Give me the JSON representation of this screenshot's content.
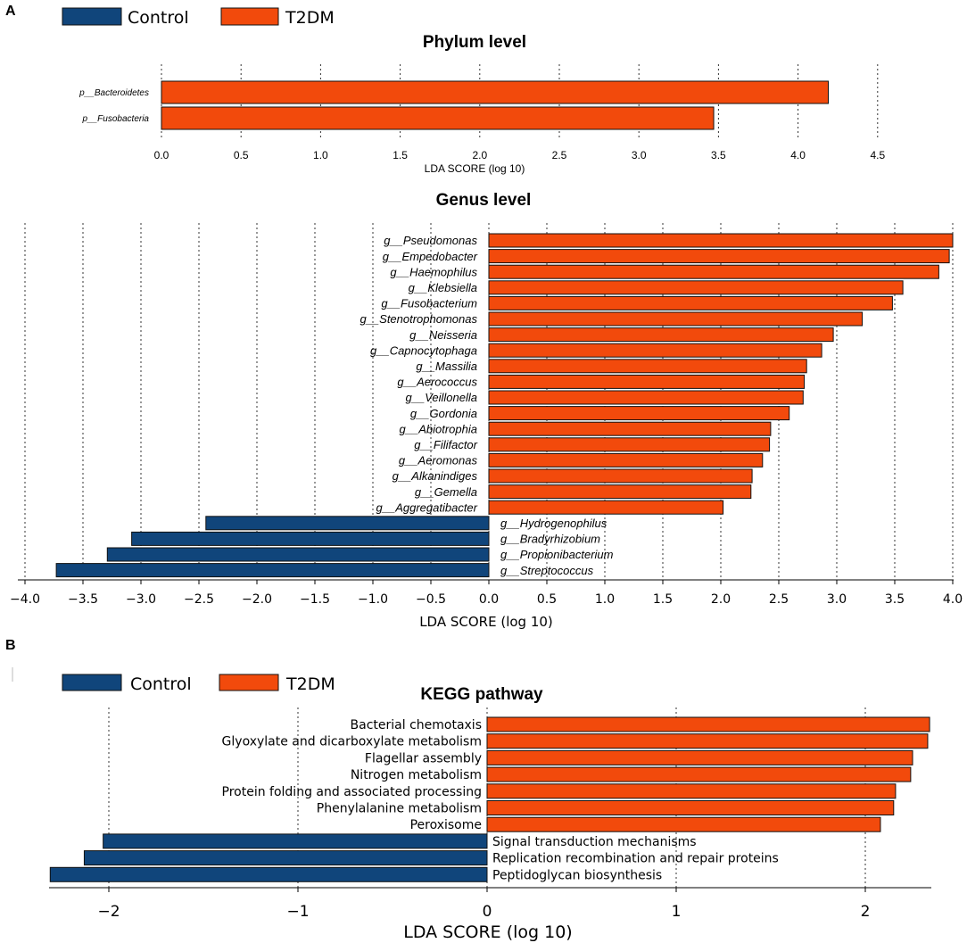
{
  "colors": {
    "control": "#10457b",
    "t2dm": "#f24a0c"
  },
  "chart_data": [
    {
      "panel": "A",
      "type": "bar",
      "orientation": "horizontal",
      "title": "Phylum level",
      "legend": [
        {
          "name": "Control",
          "color": "#10457b"
        },
        {
          "name": "T2DM",
          "color": "#f24a0c"
        }
      ],
      "legend_position": "top-left",
      "xlabel": "LDA SCORE (log 10)",
      "xlim": [
        0,
        4.9
      ],
      "ticks": [
        0,
        0.5,
        1,
        1.5,
        2,
        2.5,
        3,
        3.5,
        4,
        4.5
      ],
      "tick_labels": [
        "0.0",
        "0.5",
        "1.0",
        "1.5",
        "2.0",
        "2.5",
        "3.0",
        "3.5",
        "4.0",
        "4.5"
      ],
      "grid": true,
      "categories": [
        "p__Bacteroidetes",
        "p__Fusobacteria"
      ],
      "values": [
        4.19,
        3.47
      ],
      "groups": [
        "T2DM",
        "T2DM"
      ]
    },
    {
      "panel": "A",
      "type": "bar",
      "orientation": "horizontal",
      "title": "Genus level",
      "xlabel": "LDA SCORE (log 10)",
      "xlim": [
        -4.1,
        4.02
      ],
      "ticks": [
        -4,
        -3.5,
        -3,
        -2.5,
        -2,
        -1.5,
        -1,
        -0.5,
        0,
        0.5,
        1,
        1.5,
        2,
        2.5,
        3,
        3.5,
        4
      ],
      "tick_labels": [
        "−4.0",
        "−3.5",
        "−3.0",
        "−2.5",
        "−2.0",
        "−1.5",
        "−1.0",
        "−0.5",
        "0.0",
        "0.5",
        "1.0",
        "1.5",
        "2.0",
        "2.5",
        "3.0",
        "3.5",
        "4.0"
      ],
      "grid": true,
      "categories": [
        "g__Pseudomonas",
        "g__Empedobacter",
        "g__Haemophilus",
        "g__Klebsiella",
        "g__Fusobacterium",
        "g__Stenotrophomonas",
        "g__Neisseria",
        "g__Capnocytophaga",
        "g__Massilia",
        "g__Aerococcus",
        "g__Veillonella",
        "g__Gordonia",
        "g__Abiotrophia",
        "g__Filifactor",
        "g__Aeromonas",
        "g__Alkanindiges",
        "g__Gemella",
        "g__Aggregatibacter",
        "g__Hydrogenophilus",
        "g__Bradyrhizobium",
        "g__Propionibacterium",
        "g__Streptococcus"
      ],
      "values": [
        4.0,
        3.97,
        3.88,
        3.57,
        3.48,
        3.22,
        2.97,
        2.87,
        2.74,
        2.72,
        2.71,
        2.59,
        2.43,
        2.42,
        2.36,
        2.27,
        2.26,
        2.02,
        -2.44,
        -3.08,
        -3.29,
        -3.73
      ],
      "groups": [
        "T2DM",
        "T2DM",
        "T2DM",
        "T2DM",
        "T2DM",
        "T2DM",
        "T2DM",
        "T2DM",
        "T2DM",
        "T2DM",
        "T2DM",
        "T2DM",
        "T2DM",
        "T2DM",
        "T2DM",
        "T2DM",
        "T2DM",
        "T2DM",
        "Control",
        "Control",
        "Control",
        "Control"
      ]
    },
    {
      "panel": "B",
      "type": "bar",
      "orientation": "horizontal",
      "title": "KEGG pathway",
      "legend": [
        {
          "name": "Control",
          "color": "#10457b"
        },
        {
          "name": "T2DM",
          "color": "#f24a0c"
        }
      ],
      "legend_position": "top-left",
      "xlabel": "LDA SCORE (log 10)",
      "xlim": [
        -2.35,
        2.45
      ],
      "ticks": [
        -2,
        -1,
        0,
        1,
        2
      ],
      "tick_labels": [
        "−2",
        "−1",
        "0",
        "1",
        "2"
      ],
      "grid": true,
      "categories": [
        "Bacterial chemotaxis",
        "Glyoxylate and dicarboxylate metabolism",
        "Flagellar assembly",
        "Nitrogen metabolism",
        "Protein folding and associated processing",
        "Phenylalanine metabolism",
        "Peroxisome",
        "Signal transduction mechanisms",
        "Replication recombination and repair proteins",
        "Peptidoglycan biosynthesis"
      ],
      "values": [
        2.34,
        2.33,
        2.25,
        2.24,
        2.16,
        2.15,
        2.08,
        -2.03,
        -2.13,
        -2.31
      ],
      "groups": [
        "T2DM",
        "T2DM",
        "T2DM",
        "T2DM",
        "T2DM",
        "T2DM",
        "T2DM",
        "Control",
        "Control",
        "Control"
      ]
    }
  ]
}
